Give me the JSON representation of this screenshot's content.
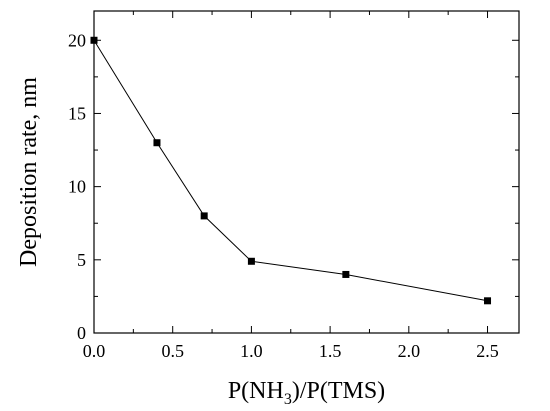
{
  "chart_data": {
    "type": "line",
    "title": "",
    "xlabel": {
      "pre": "P(NH",
      "sub": "3",
      "post": ")/P(TMS)"
    },
    "ylabel": "Deposition rate, nm",
    "xlim": [
      0.0,
      2.7
    ],
    "ylim": [
      0,
      22
    ],
    "xticks": [
      "0.0",
      "0.5",
      "1.0",
      "1.5",
      "2.0",
      "2.5"
    ],
    "yticks": [
      "0",
      "5",
      "10",
      "15",
      "20"
    ],
    "x": [
      0.0,
      0.4,
      0.7,
      1.0,
      1.6,
      2.5
    ],
    "y": [
      20.0,
      13.0,
      8.0,
      4.9,
      4.0,
      2.2
    ],
    "marker": "square",
    "line_color": "#000000",
    "grid": false
  }
}
